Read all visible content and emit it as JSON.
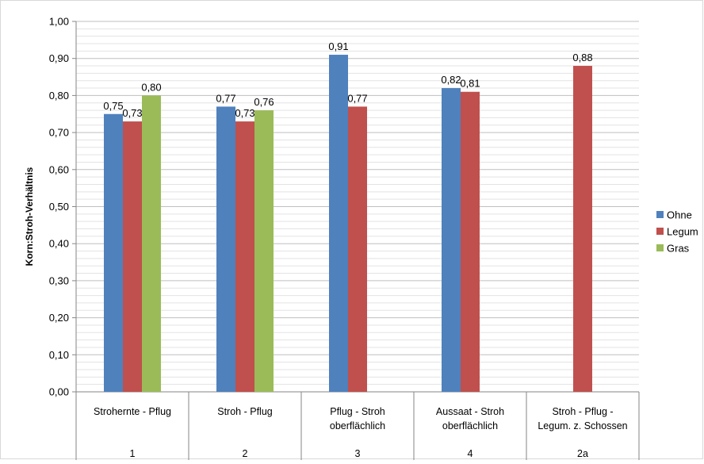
{
  "chart_data": {
    "type": "bar",
    "title": "",
    "xlabel": "",
    "ylabel": "Korn:Stroh-Verhältnis",
    "ylim": [
      0,
      1
    ],
    "y_ticks": [
      "0,00",
      "0,10",
      "0,20",
      "0,30",
      "0,40",
      "0,50",
      "0,60",
      "0,70",
      "0,80",
      "0,90",
      "1,00"
    ],
    "grid": true,
    "legend_position": "right",
    "categories": [
      {
        "label_lines": [
          "Strohernte - Pflug"
        ],
        "number": "1"
      },
      {
        "label_lines": [
          "Stroh - Pflug"
        ],
        "number": "2"
      },
      {
        "label_lines": [
          "Pflug - Stroh",
          "oberflächlich"
        ],
        "number": "3"
      },
      {
        "label_lines": [
          "Aussaat - Stroh",
          "oberflächlich"
        ],
        "number": "4"
      },
      {
        "label_lines": [
          "Stroh - Pflug -",
          "Legum. z. Schossen"
        ],
        "number": "2a"
      }
    ],
    "series": [
      {
        "name": "Ohne",
        "color": "#4F81BD",
        "values": [
          0.75,
          0.77,
          0.91,
          0.82,
          null
        ],
        "labels": [
          "0,75",
          "0,77",
          "0,91",
          "0,82",
          ""
        ]
      },
      {
        "name": "Legum",
        "color": "#C0504D",
        "values": [
          0.73,
          0.73,
          0.77,
          0.81,
          0.88
        ],
        "labels": [
          "0,73",
          "0,73",
          "0,77",
          "0,81",
          "0,88"
        ]
      },
      {
        "name": "Gras",
        "color": "#9BBB59",
        "values": [
          0.8,
          0.76,
          null,
          null,
          null
        ],
        "labels": [
          "0,80",
          "0,76",
          "",
          "",
          ""
        ]
      }
    ]
  }
}
